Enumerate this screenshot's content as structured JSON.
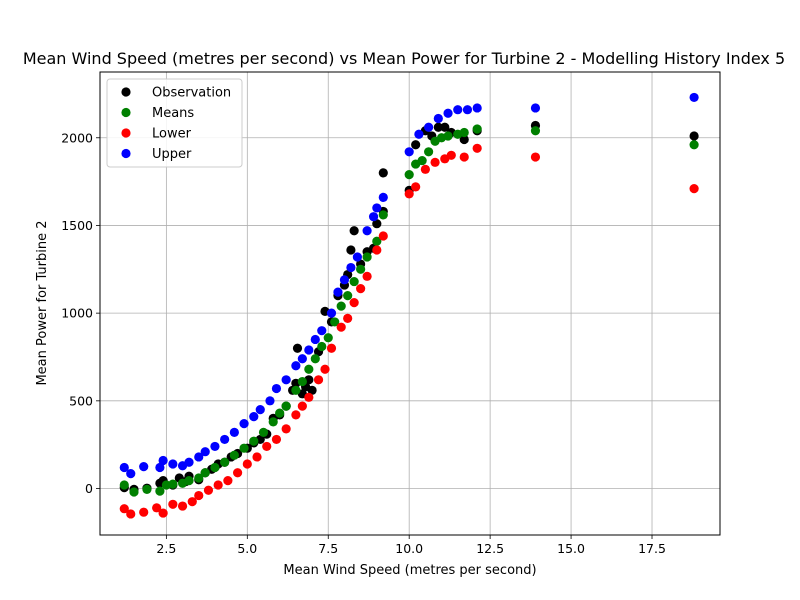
{
  "chart_data": {
    "type": "scatter",
    "title": "Mean Wind Speed (metres per second) vs Mean Power for Turbine 2 - Modelling History Index 5",
    "xlabel": "Mean Wind Speed (metres per second)",
    "ylabel": "Mean Power for Turbine 2",
    "xlim": [
      0.45,
      19.6
    ],
    "ylim": [
      -265,
      2375
    ],
    "xticks": [
      2.5,
      5.0,
      7.5,
      10.0,
      12.5,
      15.0,
      17.5
    ],
    "xtick_labels": [
      "2.5",
      "5.0",
      "7.5",
      "10.0",
      "12.5",
      "15.0",
      "17.5"
    ],
    "yticks": [
      0,
      500,
      1000,
      1500,
      2000
    ],
    "ytick_labels": [
      "0",
      "500",
      "1000",
      "1500",
      "2000"
    ],
    "grid": true,
    "legend_position": "top-left",
    "series": [
      {
        "name": "Observation",
        "color": "#000000",
        "points": [
          [
            1.2,
            5
          ],
          [
            1.5,
            -5
          ],
          [
            1.9,
            2
          ],
          [
            2.3,
            30
          ],
          [
            2.4,
            45
          ],
          [
            2.7,
            20
          ],
          [
            2.9,
            60
          ],
          [
            3.1,
            40
          ],
          [
            3.2,
            70
          ],
          [
            3.5,
            50
          ],
          [
            3.7,
            90
          ],
          [
            3.9,
            110
          ],
          [
            4.1,
            140
          ],
          [
            4.3,
            150
          ],
          [
            4.5,
            180
          ],
          [
            4.7,
            200
          ],
          [
            5.0,
            230
          ],
          [
            5.2,
            260
          ],
          [
            5.4,
            280
          ],
          [
            5.6,
            310
          ],
          [
            5.8,
            400
          ],
          [
            6.0,
            420
          ],
          [
            6.2,
            470
          ],
          [
            6.4,
            560
          ],
          [
            6.5,
            600
          ],
          [
            6.55,
            800
          ],
          [
            6.7,
            540
          ],
          [
            6.8,
            580
          ],
          [
            6.9,
            620
          ],
          [
            7.0,
            560
          ],
          [
            7.2,
            780
          ],
          [
            7.4,
            1010
          ],
          [
            7.6,
            950
          ],
          [
            7.8,
            1100
          ],
          [
            8.0,
            1160
          ],
          [
            8.1,
            1220
          ],
          [
            8.2,
            1360
          ],
          [
            8.3,
            1470
          ],
          [
            8.5,
            1280
          ],
          [
            8.7,
            1350
          ],
          [
            8.9,
            1370
          ],
          [
            9.0,
            1510
          ],
          [
            9.2,
            1580
          ],
          [
            9.2,
            1800
          ],
          [
            10.0,
            1700
          ],
          [
            10.2,
            1960
          ],
          [
            10.5,
            2040
          ],
          [
            10.7,
            2010
          ],
          [
            10.9,
            2060
          ],
          [
            11.1,
            2060
          ],
          [
            11.3,
            2030
          ],
          [
            11.7,
            1990
          ],
          [
            12.1,
            2040
          ],
          [
            13.9,
            2070
          ],
          [
            18.8,
            2010
          ]
        ]
      },
      {
        "name": "Means",
        "color": "#008000",
        "points": [
          [
            1.2,
            20
          ],
          [
            1.5,
            -20
          ],
          [
            1.9,
            -5
          ],
          [
            2.3,
            -15
          ],
          [
            2.5,
            20
          ],
          [
            2.7,
            25
          ],
          [
            3.0,
            30
          ],
          [
            3.2,
            45
          ],
          [
            3.5,
            60
          ],
          [
            3.7,
            90
          ],
          [
            4.0,
            120
          ],
          [
            4.3,
            150
          ],
          [
            4.6,
            190
          ],
          [
            4.9,
            230
          ],
          [
            5.2,
            270
          ],
          [
            5.5,
            320
          ],
          [
            5.8,
            380
          ],
          [
            6.0,
            430
          ],
          [
            6.2,
            470
          ],
          [
            6.5,
            560
          ],
          [
            6.7,
            610
          ],
          [
            6.9,
            680
          ],
          [
            7.1,
            740
          ],
          [
            7.3,
            810
          ],
          [
            7.5,
            860
          ],
          [
            7.7,
            950
          ],
          [
            7.9,
            1040
          ],
          [
            8.1,
            1100
          ],
          [
            8.3,
            1180
          ],
          [
            8.5,
            1250
          ],
          [
            8.7,
            1320
          ],
          [
            9.0,
            1410
          ],
          [
            9.2,
            1560
          ],
          [
            10.0,
            1790
          ],
          [
            10.2,
            1850
          ],
          [
            10.4,
            1870
          ],
          [
            10.6,
            1920
          ],
          [
            10.8,
            1980
          ],
          [
            11.0,
            2000
          ],
          [
            11.2,
            2010
          ],
          [
            11.5,
            2020
          ],
          [
            11.7,
            2030
          ],
          [
            12.1,
            2050
          ],
          [
            13.9,
            2040
          ],
          [
            18.8,
            1960
          ]
        ]
      },
      {
        "name": "Lower",
        "color": "#ff0000",
        "points": [
          [
            1.2,
            -115
          ],
          [
            1.4,
            -145
          ],
          [
            1.8,
            -135
          ],
          [
            2.2,
            -110
          ],
          [
            2.4,
            -140
          ],
          [
            2.7,
            -90
          ],
          [
            3.0,
            -100
          ],
          [
            3.3,
            -75
          ],
          [
            3.5,
            -40
          ],
          [
            3.8,
            -10
          ],
          [
            4.1,
            20
          ],
          [
            4.4,
            45
          ],
          [
            4.7,
            90
          ],
          [
            5.0,
            140
          ],
          [
            5.3,
            180
          ],
          [
            5.6,
            240
          ],
          [
            5.9,
            280
          ],
          [
            6.2,
            340
          ],
          [
            6.5,
            420
          ],
          [
            6.7,
            470
          ],
          [
            6.9,
            520
          ],
          [
            7.2,
            620
          ],
          [
            7.4,
            680
          ],
          [
            7.6,
            800
          ],
          [
            7.9,
            920
          ],
          [
            8.1,
            970
          ],
          [
            8.3,
            1060
          ],
          [
            8.5,
            1140
          ],
          [
            8.7,
            1210
          ],
          [
            9.0,
            1360
          ],
          [
            9.2,
            1440
          ],
          [
            10.0,
            1680
          ],
          [
            10.2,
            1720
          ],
          [
            10.5,
            1820
          ],
          [
            10.8,
            1860
          ],
          [
            11.1,
            1880
          ],
          [
            11.3,
            1900
          ],
          [
            11.7,
            1890
          ],
          [
            12.1,
            1940
          ],
          [
            13.9,
            1890
          ],
          [
            18.8,
            1710
          ]
        ]
      },
      {
        "name": "Upper",
        "color": "#0000ff",
        "points": [
          [
            1.2,
            120
          ],
          [
            1.4,
            85
          ],
          [
            1.8,
            125
          ],
          [
            2.3,
            120
          ],
          [
            2.4,
            160
          ],
          [
            2.7,
            140
          ],
          [
            3.0,
            130
          ],
          [
            3.2,
            150
          ],
          [
            3.5,
            180
          ],
          [
            3.7,
            210
          ],
          [
            4.0,
            240
          ],
          [
            4.3,
            280
          ],
          [
            4.6,
            320
          ],
          [
            4.9,
            370
          ],
          [
            5.2,
            410
          ],
          [
            5.4,
            450
          ],
          [
            5.7,
            500
          ],
          [
            5.9,
            570
          ],
          [
            6.2,
            620
          ],
          [
            6.5,
            700
          ],
          [
            6.7,
            740
          ],
          [
            6.9,
            790
          ],
          [
            7.1,
            850
          ],
          [
            7.3,
            900
          ],
          [
            7.6,
            1000
          ],
          [
            7.8,
            1120
          ],
          [
            8.0,
            1190
          ],
          [
            8.2,
            1260
          ],
          [
            8.4,
            1320
          ],
          [
            8.7,
            1470
          ],
          [
            8.9,
            1550
          ],
          [
            9.0,
            1600
          ],
          [
            9.2,
            1660
          ],
          [
            10.0,
            1920
          ],
          [
            10.3,
            2020
          ],
          [
            10.6,
            2060
          ],
          [
            10.9,
            2110
          ],
          [
            11.2,
            2140
          ],
          [
            11.5,
            2160
          ],
          [
            11.8,
            2160
          ],
          [
            12.1,
            2170
          ],
          [
            13.9,
            2170
          ],
          [
            18.8,
            2230
          ]
        ]
      }
    ]
  }
}
